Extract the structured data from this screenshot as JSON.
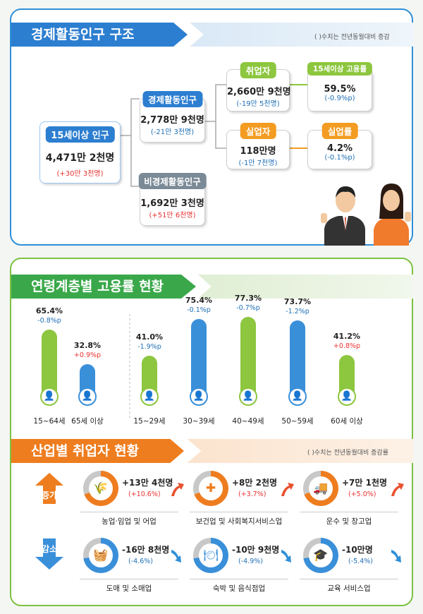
{
  "structure": {
    "title": "경제활동인구 구조",
    "note": "( )수치는 전년동월대비 증감",
    "pop15": {
      "label": "15세이상 인구",
      "value": "4,471만 2천명",
      "change": "(+30만 3천명)"
    },
    "active": {
      "label": "경제활동인구",
      "value": "2,778만 9천명",
      "change": "(-21만 3천명)"
    },
    "inactive": {
      "label": "비경제활동인구",
      "value": "1,692만 3천명",
      "change": "(+51만 6천명)"
    },
    "employed": {
      "label": "취업자",
      "value": "2,660만 9천명",
      "change": "(-19만 5천명)"
    },
    "emp_rate": {
      "label": "15세이상 고용률",
      "value": "59.5%",
      "change": "(-0.9%p)"
    },
    "unemployed": {
      "label": "실업자",
      "value": "118만명",
      "change": "(-1만 7천명)"
    },
    "unemp_rate": {
      "label": "실업률",
      "value": "4.2%",
      "change": "(-0.1%p)"
    }
  },
  "age": {
    "title": "연령계층별 고용률 현황"
  },
  "chart_data": {
    "type": "bar",
    "categories": [
      "15~64세",
      "65세 이상",
      "15~29세",
      "30~39세",
      "40~49세",
      "50~59세",
      "60세 이상"
    ],
    "values": [
      65.4,
      32.8,
      41.0,
      75.4,
      77.3,
      73.7,
      41.2
    ],
    "value_labels": [
      "65.4%",
      "32.8%",
      "41.0%",
      "75.4%",
      "77.3%",
      "73.7%",
      "41.2%"
    ],
    "changes": [
      "-0.8%p",
      "+0.9%p",
      "-1.9%p",
      "-0.1%p",
      "-0.7%p",
      "-1.2%p",
      "+0.8%p"
    ],
    "ylim": [
      0,
      100
    ],
    "colors": [
      "#8dc63f",
      "#3a8fd9",
      "#8dc63f",
      "#3a8fd9",
      "#8dc63f",
      "#3a8fd9",
      "#8dc63f"
    ]
  },
  "industry": {
    "title": "산업별 취업자 현황",
    "note": "( )수치는 전년동월대비 증감률",
    "increase_label": "증가",
    "decrease_label": "감소",
    "items": [
      {
        "name": "농업·임업 및 어업",
        "value": "+13만 4천명",
        "change": "(+10.6%)",
        "icon": "wheat-icon",
        "glyph": "🌾",
        "dir": "up"
      },
      {
        "name": "보건업 및 사회복지서비스업",
        "value": "+8만 2천명",
        "change": "(+3.7%)",
        "icon": "medical-kit-icon",
        "glyph": "✚",
        "dir": "up"
      },
      {
        "name": "운수 및 창고업",
        "value": "+7만 1천명",
        "change": "(+5.0%)",
        "icon": "truck-icon",
        "glyph": "🚚",
        "dir": "up"
      },
      {
        "name": "도매 및 소매업",
        "value": "-16만 8천명",
        "change": "(-4.6%)",
        "icon": "basket-icon",
        "glyph": "🧺",
        "dir": "down"
      },
      {
        "name": "숙박 및 음식점업",
        "value": "-10만 9천명",
        "change": "(-4.9%)",
        "icon": "dining-icon",
        "glyph": "🍽",
        "dir": "down"
      },
      {
        "name": "교육 서비스업",
        "value": "-10만명",
        "change": "(-5.4%)",
        "icon": "graduation-cap-icon",
        "glyph": "🎓",
        "dir": "down"
      }
    ]
  }
}
